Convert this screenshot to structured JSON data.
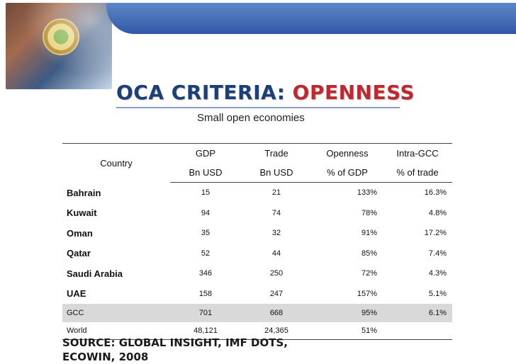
{
  "slide": {
    "title_part1": "OCA CRITERIA:",
    "title_part2": "OPENNESS",
    "subtitle": "Small open economies",
    "source": "SOURCE: GLOBAL INSIGHT, IMF DOTS, ECOWIN, 2008"
  },
  "table": {
    "headers": {
      "country": "Country",
      "gdp": "GDP",
      "gdp_unit": "Bn USD",
      "trade": "Trade",
      "trade_unit": "Bn USD",
      "openness": "Openness",
      "openness_unit": "% of GDP",
      "intra": "Intra-GCC",
      "intra_unit": "% of trade"
    },
    "rows": [
      {
        "country": "Bahrain",
        "gdp": "15",
        "trade": "21",
        "openness": "133%",
        "intra": "16.3%"
      },
      {
        "country": "Kuwait",
        "gdp": "94",
        "trade": "74",
        "openness": "78%",
        "intra": "4.8%"
      },
      {
        "country": "Oman",
        "gdp": "35",
        "trade": "32",
        "openness": "91%",
        "intra": "17.2%"
      },
      {
        "country": "Qatar",
        "gdp": "52",
        "trade": "44",
        "openness": "85%",
        "intra": "7.4%"
      },
      {
        "country": "Saudi Arabia",
        "gdp": "346",
        "trade": "250",
        "openness": "72%",
        "intra": "4.3%"
      },
      {
        "country": "UAE",
        "gdp": "158",
        "trade": "247",
        "openness": "157%",
        "intra": "5.1%"
      },
      {
        "country": "GCC",
        "gdp": "701",
        "trade": "668",
        "openness": "95%",
        "intra": "6.1%"
      },
      {
        "country": "World",
        "gdp": "48,121",
        "trade": "24,365",
        "openness": "51%",
        "intra": ""
      }
    ]
  }
}
